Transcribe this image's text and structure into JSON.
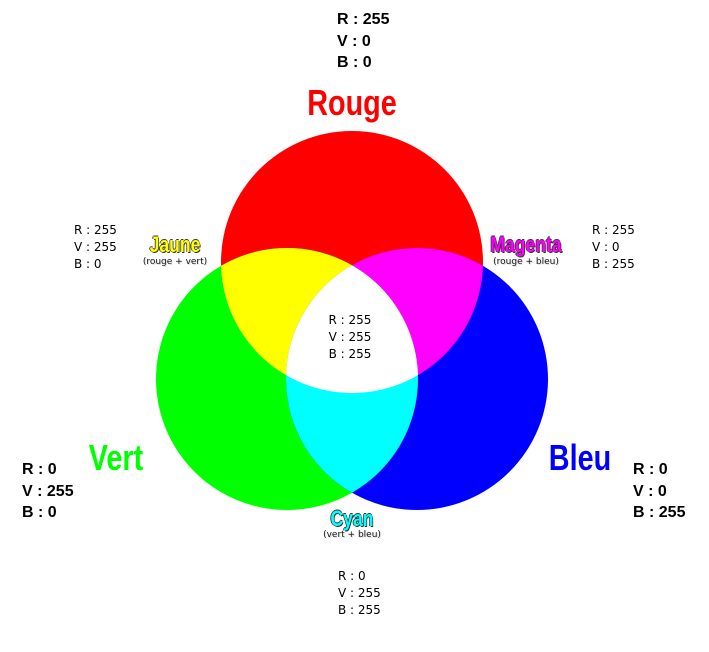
{
  "colors": {
    "red": "#ff0000",
    "green": "#00ff00",
    "blue": "#0000ff",
    "yellow": "#ffff00",
    "magenta": "#ff00ff",
    "cyan": "#00ffff",
    "white": "#ffffff"
  },
  "labels": {
    "rouge": {
      "title": "Rouge",
      "r": "R : 255",
      "v": "V : 0",
      "b": "B : 0"
    },
    "vert": {
      "title": "Vert",
      "r": "R : 0",
      "v": "V : 255",
      "b": "B : 0"
    },
    "bleu": {
      "title": "Bleu",
      "r": "R : 0",
      "v": "V : 0",
      "b": "B : 255"
    },
    "jaune": {
      "title": "Jaune",
      "subtitle": "(rouge + vert)",
      "r": "R : 255",
      "v": "V : 255",
      "b": "B : 0"
    },
    "magenta": {
      "title": "Magenta",
      "subtitle": "(rouge + bleu)",
      "r": "R : 255",
      "v": "V : 0",
      "b": "B : 255"
    },
    "cyan": {
      "title": "Cyan",
      "subtitle": "(vert + bleu)",
      "r": "R : 0",
      "v": "V : 255",
      "b": "B : 255"
    },
    "blanc": {
      "r": "R : 255",
      "v": "V : 255",
      "b": "B : 255"
    }
  }
}
